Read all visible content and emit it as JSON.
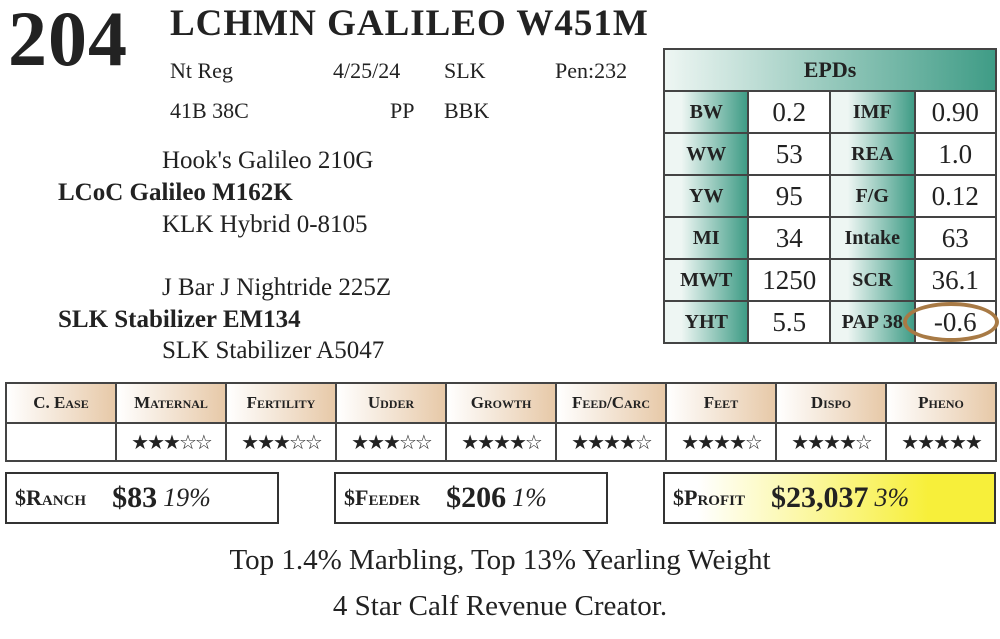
{
  "lot": "204",
  "title": "LCHMN GALILEO W451M",
  "info": {
    "reg": "Nt Reg",
    "date": "4/25/24",
    "breeder": "SLK",
    "pen": "Pen:232",
    "tattoo": "41B 38C",
    "poll": "PP",
    "color": "BBK"
  },
  "pedigree": {
    "sire_sire": "Hook's Galileo 210G",
    "sire": "LCoC Galileo M162K",
    "sire_dam": "KLK Hybrid 0-8105",
    "dam_sire": "J Bar J Nightride 225Z",
    "dam": "SLK Stabilizer EM134",
    "dam_dam": "SLK Stabilizer A5047"
  },
  "epds": {
    "header": "EPDs",
    "rows": [
      {
        "l1": "BW",
        "v1": "0.2",
        "l2": "IMF",
        "v2": "0.90"
      },
      {
        "l1": "WW",
        "v1": "53",
        "l2": "REA",
        "v2": "1.0"
      },
      {
        "l1": "YW",
        "v1": "95",
        "l2": "F/G",
        "v2": "0.12"
      },
      {
        "l1": "MI",
        "v1": "34",
        "l2": "Intake",
        "v2": "63"
      },
      {
        "l1": "MWT",
        "v1": "1250",
        "l2": "SCR",
        "v2": "36.1"
      },
      {
        "l1": "YHT",
        "v1": "5.5",
        "l2": "PAP 38",
        "v2": "-0.6"
      }
    ],
    "highlight_circle_color": "#a87a45"
  },
  "traits": [
    {
      "name": "C. Ease",
      "stars": null,
      "display": ""
    },
    {
      "name": "Maternal",
      "stars": 3,
      "display": "★★★☆☆"
    },
    {
      "name": "Fertility",
      "stars": 3,
      "display": "★★★☆☆"
    },
    {
      "name": "Udder",
      "stars": 3,
      "display": "★★★☆☆"
    },
    {
      "name": "Growth",
      "stars": 4,
      "display": "★★★★☆"
    },
    {
      "name": "Feed/Carc",
      "stars": 4,
      "display": "★★★★☆"
    },
    {
      "name": "Feet",
      "stars": 4,
      "display": "★★★★☆"
    },
    {
      "name": "Dispo",
      "stars": 4,
      "display": "★★★★☆"
    },
    {
      "name": "Pheno",
      "stars": 5,
      "display": "★★★★★"
    }
  ],
  "indexes": {
    "ranch": {
      "label": "$Ranch",
      "value": "$83",
      "pct": "19%"
    },
    "feeder": {
      "label": "$Feeder",
      "value": "$206",
      "pct": "1%"
    },
    "profit": {
      "label": "$Profit",
      "value": "$23,037",
      "pct": "3%",
      "highlight": "#f7ef3a"
    }
  },
  "footer": {
    "line1": "Top 1.4% Marbling, Top 13% Yearling Weight",
    "line2": "4 Star Calf Revenue Creator."
  }
}
